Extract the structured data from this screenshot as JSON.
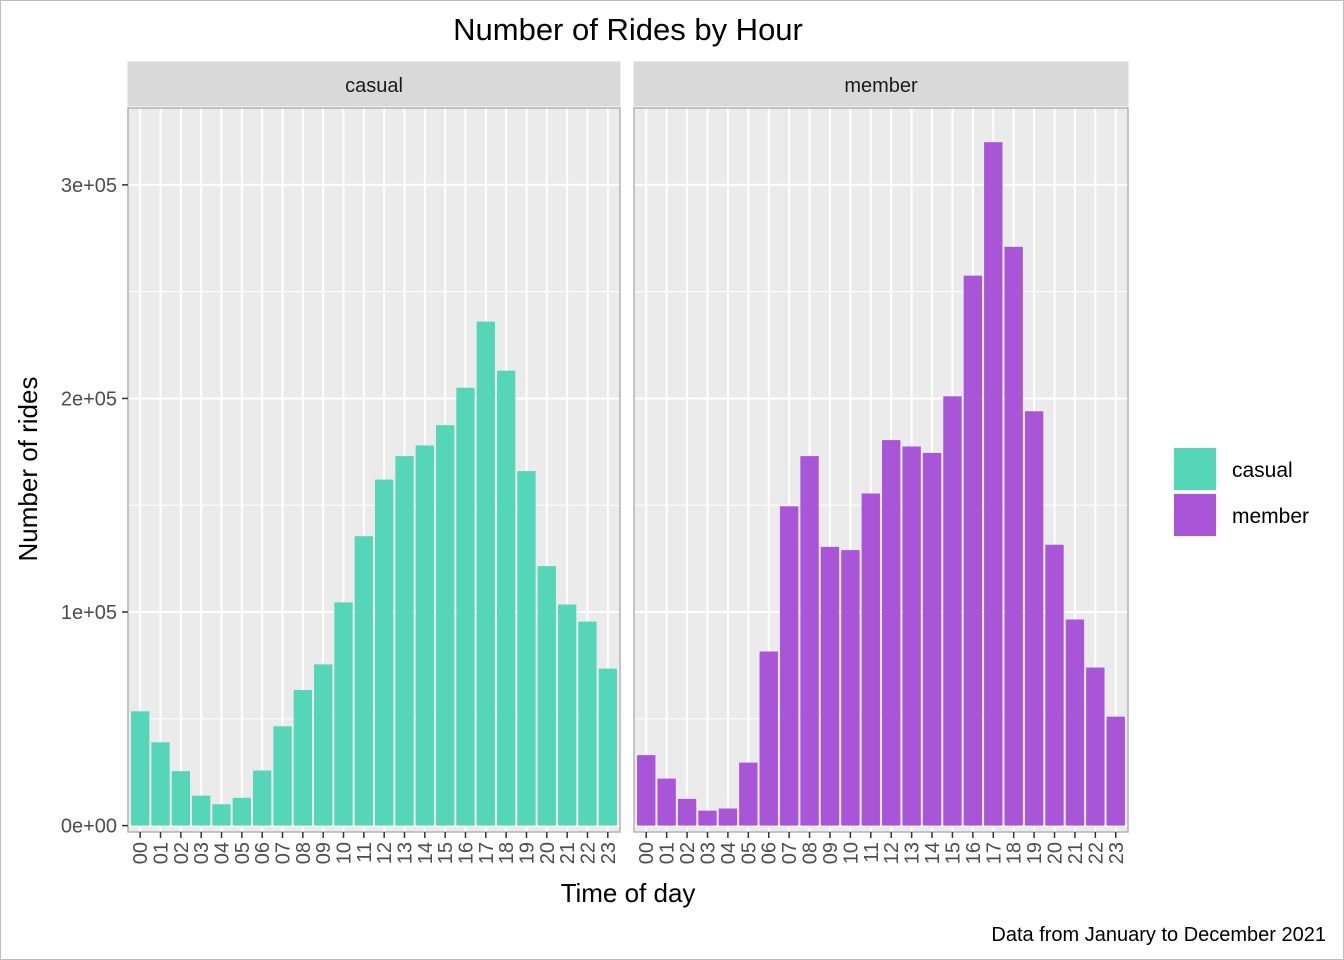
{
  "chart_data": {
    "type": "bar",
    "title": "Number of Rides by Hour",
    "xlabel": "Time of day",
    "ylabel": "Number of rides",
    "caption": "Data from January to December 2021",
    "categories": [
      "00",
      "01",
      "02",
      "03",
      "04",
      "05",
      "06",
      "07",
      "08",
      "09",
      "10",
      "11",
      "12",
      "13",
      "14",
      "15",
      "16",
      "17",
      "18",
      "19",
      "20",
      "21",
      "22",
      "23"
    ],
    "y_tick_values": [
      0,
      100000,
      200000,
      300000
    ],
    "y_tick_labels": [
      "0e+00",
      "1e+05",
      "2e+05",
      "3e+05"
    ],
    "ylim": [
      -3000,
      336000
    ],
    "grid": true,
    "legend_position": "right",
    "facets": [
      {
        "name": "casual",
        "color": "#55D6B8",
        "values": [
          53500,
          39000,
          25500,
          14000,
          10000,
          13000,
          25800,
          46500,
          63500,
          75500,
          104500,
          135500,
          162000,
          173000,
          178000,
          187500,
          205000,
          236000,
          213000,
          166000,
          121500,
          103500,
          95500,
          73500
        ]
      },
      {
        "name": "member",
        "color": "#A855D8",
        "values": [
          33000,
          22000,
          12500,
          7000,
          8000,
          29500,
          81500,
          149500,
          173000,
          130500,
          129000,
          155500,
          180500,
          177500,
          174500,
          201000,
          257500,
          320000,
          271000,
          194000,
          131500,
          96500,
          74000,
          51000
        ]
      }
    ],
    "legend": [
      {
        "label": "casual",
        "color": "#55D6B8"
      },
      {
        "label": "member",
        "color": "#A855D8"
      }
    ]
  }
}
